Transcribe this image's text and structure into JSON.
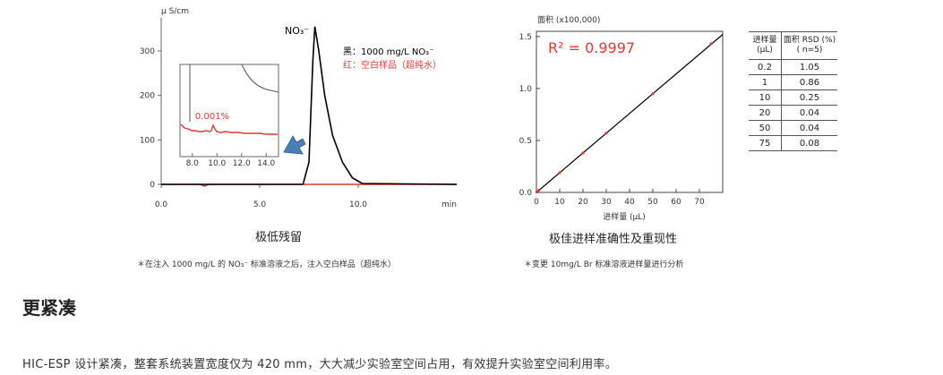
{
  "left_chart": {
    "y_unit": "μ S/cm",
    "y_ticks": [
      "300",
      "200",
      "100",
      "0"
    ],
    "x_ticks": [
      "0.0",
      "5.0",
      "10.0"
    ],
    "x_unit": "min",
    "peak_label": "NO₃⁻",
    "legend_black": "黑：1000 mg/L NO₃⁻",
    "legend_red": "红：空白样品（超纯水）",
    "inset_label": "0.001%",
    "inset_x_ticks": [
      "8.0",
      "10.0",
      "12.0",
      "14.0"
    ],
    "caption": "极低残留",
    "note": "＊在注入 1000 mg/L 的 NO₃⁻ 标准溶液之后，注入空白样品（超纯水）"
  },
  "right_chart": {
    "y_label": "面积 (x100,000)",
    "y_ticks": [
      "1.5",
      "1.0",
      "0.5",
      "0.0"
    ],
    "x_ticks": [
      "0",
      "10",
      "20",
      "30",
      "40",
      "50",
      "60",
      "70"
    ],
    "x_label": "进样量 (μL)",
    "r2": "R² = 0.9997",
    "caption": "极佳进样准确性及重现性",
    "note": "＊变更 10mg/L Br 标准溶液进样量进行分析"
  },
  "chart_data": [
    {
      "type": "line",
      "title": "极低残留",
      "xlabel": "min",
      "ylabel": "μ S/cm",
      "xlim": [
        0,
        15
      ],
      "ylim": [
        -10,
        360
      ],
      "series": [
        {
          "name": "黑：1000 mg/L NO₃⁻",
          "color": "#000000",
          "x": [
            0,
            7.2,
            7.5,
            7.7,
            7.8,
            8.0,
            8.3,
            8.7,
            9.2,
            9.7,
            10.2,
            15
          ],
          "y": [
            0,
            0,
            50,
            280,
            355,
            300,
            200,
            110,
            50,
            15,
            2,
            0
          ]
        },
        {
          "name": "红：空白样品（超纯水）",
          "color": "#e03a2f",
          "x": [
            0,
            2.0,
            2.2,
            2.4,
            15
          ],
          "y": [
            0,
            0,
            -4,
            0,
            0
          ]
        }
      ],
      "inset": {
        "xlim": [
          7,
          15
        ],
        "x_ticks": [
          8.0,
          10.0,
          12.0,
          14.0
        ],
        "annotation": "0.001%"
      }
    },
    {
      "type": "scatter",
      "title": "极佳进样准确性及重现性",
      "xlabel": "进样量 (μL)",
      "ylabel": "面积 (x100,000)",
      "xlim": [
        0,
        80
      ],
      "ylim": [
        0,
        1.55
      ],
      "annotation": "R² = 0.9997",
      "series": [
        {
          "name": "",
          "color": "#e03a2f",
          "x": [
            0.2,
            1,
            10,
            20,
            30,
            50,
            75
          ],
          "y": [
            0.004,
            0.02,
            0.19,
            0.38,
            0.57,
            0.95,
            1.43
          ]
        }
      ],
      "fit_line": {
        "color": "#000000",
        "x": [
          0,
          80
        ],
        "y": [
          0,
          1.52
        ]
      }
    },
    {
      "type": "table",
      "headers": [
        "进样量 (μL)",
        "面积 RSD (%) ( n=5)"
      ],
      "rows": [
        [
          "0.2",
          "1.05"
        ],
        [
          "1",
          "0.86"
        ],
        [
          "10",
          "0.25"
        ],
        [
          "20",
          "0.04"
        ],
        [
          "50",
          "0.04"
        ],
        [
          "75",
          "0.08"
        ]
      ]
    }
  ],
  "table": {
    "h1a": "进样量",
    "h1b": "(μL)",
    "h2a": "面积 RSD (%)",
    "h2b": "( n=5)",
    "rows": [
      {
        "a": "0.2",
        "b": "1.05"
      },
      {
        "a": "1",
        "b": "0.86"
      },
      {
        "a": "10",
        "b": "0.25"
      },
      {
        "a": "20",
        "b": "0.04"
      },
      {
        "a": "50",
        "b": "0.04"
      },
      {
        "a": "75",
        "b": "0.08"
      }
    ]
  },
  "section": {
    "heading": "更紧凑",
    "body": "HIC-ESP 设计紧凑，整套系统装置宽度仅为 420 mm，大大减少实验室空间占用，有效提升实验室空间利用率。"
  },
  "colors": {
    "black": "#000000",
    "red": "#e03a2f",
    "arrow": "#4a7fb5"
  }
}
